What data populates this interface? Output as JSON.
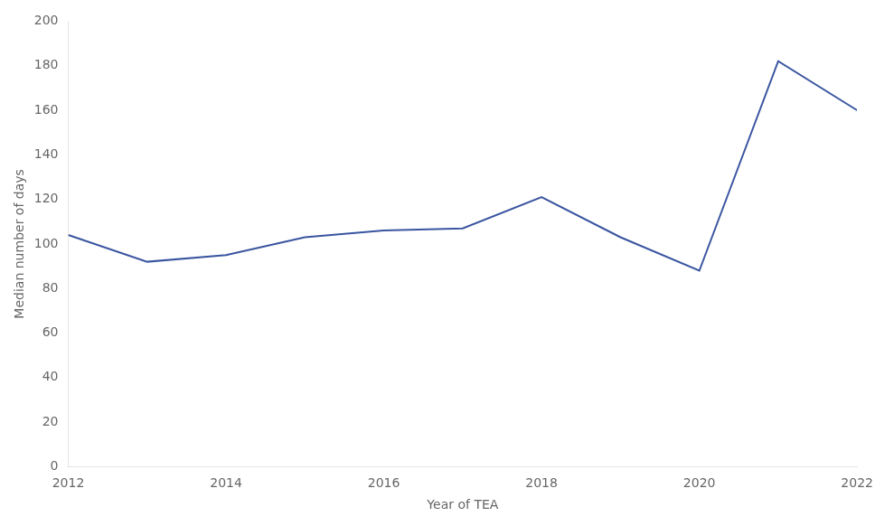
{
  "chart_data": {
    "type": "line",
    "x": [
      2012,
      2013,
      2014,
      2015,
      2016,
      2017,
      2018,
      2019,
      2020,
      2021,
      2022
    ],
    "values": [
      104,
      92,
      95,
      103,
      106,
      107,
      121,
      103,
      88,
      182,
      160
    ],
    "color": "#3a55a0",
    "xlabel": "Year of TEA",
    "ylabel": "Median number of days",
    "xlim": [
      2012,
      2022
    ],
    "ylim": [
      0,
      200
    ],
    "xticks": [
      2012,
      2014,
      2016,
      2018,
      2020,
      2022
    ],
    "yticks": [
      0,
      20,
      40,
      60,
      80,
      100,
      120,
      140,
      160,
      180,
      200
    ],
    "grid": false
  }
}
